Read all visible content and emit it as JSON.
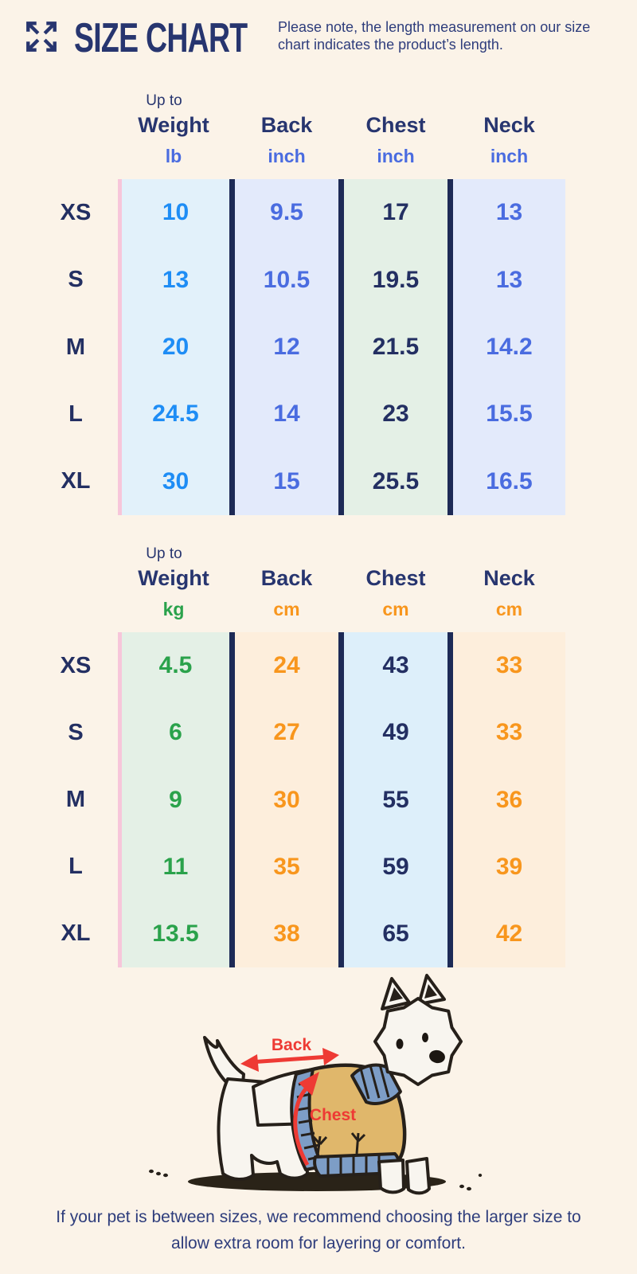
{
  "page": {
    "background": "#fbf3e8"
  },
  "header": {
    "title": "SIZE CHART",
    "note_line1": "Please note, the length measurement on our size",
    "note_line2": "chart indicates the product’s length."
  },
  "tables": [
    {
      "name": "imperial",
      "weight_qualifier": "Up to",
      "columns": [
        {
          "label": "Weight",
          "unit": "lb",
          "unit_color": "#4a6ce0",
          "value_color": "#1e8df5",
          "bg": "#e2f1fa"
        },
        {
          "label": "Back",
          "unit": "inch",
          "unit_color": "#4a6ce0",
          "value_color": "#4a6ce0",
          "bg": "#e3eafb"
        },
        {
          "label": "Chest",
          "unit": "inch",
          "unit_color": "#4a6ce0",
          "value_color": "#232f62",
          "bg": "#e4f0e6"
        },
        {
          "label": "Neck",
          "unit": "inch",
          "unit_color": "#4a6ce0",
          "value_color": "#4a6ce0",
          "bg": "#e3eafb"
        }
      ],
      "rows": [
        {
          "size": "XS",
          "values": [
            "10",
            "9.5",
            "17",
            "13"
          ]
        },
        {
          "size": "S",
          "values": [
            "13",
            "10.5",
            "19.5",
            "13"
          ]
        },
        {
          "size": "M",
          "values": [
            "20",
            "12",
            "21.5",
            "14.2"
          ]
        },
        {
          "size": "L",
          "values": [
            "24.5",
            "14",
            "23",
            "15.5"
          ]
        },
        {
          "size": "XL",
          "values": [
            "30",
            "15",
            "25.5",
            "16.5"
          ]
        }
      ]
    },
    {
      "name": "metric",
      "weight_qualifier": "Up to",
      "columns": [
        {
          "label": "Weight",
          "unit": "kg",
          "unit_color": "#2aa24b",
          "value_color": "#2aa24b",
          "bg": "#e4f0e6"
        },
        {
          "label": "Back",
          "unit": "cm",
          "unit_color": "#f8961d",
          "value_color": "#f8961d",
          "bg": "#fdeedc"
        },
        {
          "label": "Chest",
          "unit": "cm",
          "unit_color": "#f8961d",
          "value_color": "#232f62",
          "bg": "#ddeffa"
        },
        {
          "label": "Neck",
          "unit": "cm",
          "unit_color": "#f8961d",
          "value_color": "#f8961d",
          "bg": "#fdeedc"
        }
      ],
      "rows": [
        {
          "size": "XS",
          "values": [
            "4.5",
            "24",
            "43",
            "33"
          ]
        },
        {
          "size": "S",
          "values": [
            "6",
            "27",
            "49",
            "33"
          ]
        },
        {
          "size": "M",
          "values": [
            "9",
            "30",
            "55",
            "36"
          ]
        },
        {
          "size": "L",
          "values": [
            "11",
            "35",
            "59",
            "39"
          ]
        },
        {
          "size": "XL",
          "values": [
            "13.5",
            "38",
            "65",
            "42"
          ]
        }
      ]
    }
  ],
  "diagram": {
    "back_label": "Back",
    "chest_label": "Chest",
    "arrow_color": "#ee3a34"
  },
  "footer": {
    "line1": "If your pet is between sizes, we recommend choosing the larger size to",
    "line2": "allow extra room for layering or comfort."
  },
  "colors": {
    "navy": "#27356f",
    "navy_value": "#232f62",
    "divider_navy": "#1d2a56",
    "royal_blue": "#4a6ce0",
    "bright_blue": "#1e8df5",
    "green": "#2aa24b",
    "orange": "#f8961d",
    "red": "#ee3a34",
    "pink_stripe": "#f7c6da",
    "sweater_tan": "#e0b76b",
    "sweater_blue": "#7d9dc6"
  }
}
